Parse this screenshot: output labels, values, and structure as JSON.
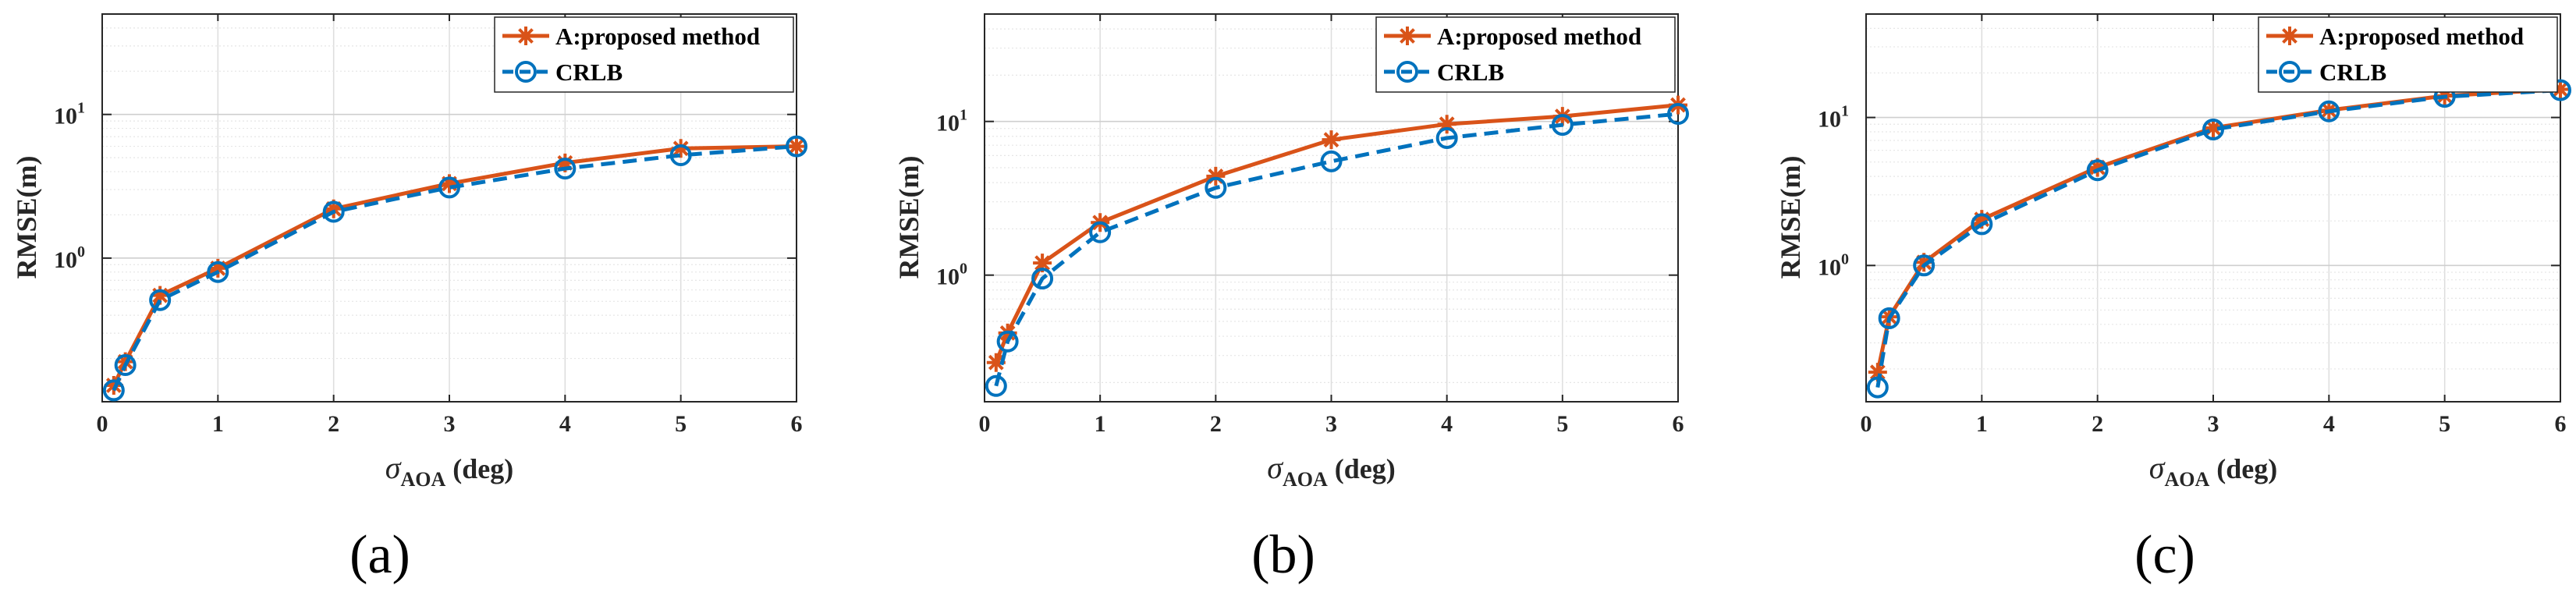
{
  "colors": {
    "proposed": "#D95319",
    "crlb": "#0072BD",
    "grid": "#DDDDDD",
    "axis": "#262626"
  },
  "chart_data": [
    {
      "type": "line",
      "panel_label": "(a)",
      "xlabel": "σ",
      "xlabel_sub": "AOA",
      "xlabel_unit": " (deg)",
      "ylabel": "RMSE(m)",
      "xlim": [
        0,
        6
      ],
      "ylim": [
        0.1,
        50
      ],
      "yscale": "log",
      "x_ticks": [
        0,
        1,
        2,
        3,
        4,
        5,
        6
      ],
      "y_ticks": [
        {
          "base": "10",
          "exp": "0",
          "value": 1
        },
        {
          "base": "10",
          "exp": "1",
          "value": 10
        }
      ],
      "grid": true,
      "legend_position": "top-right",
      "series": [
        {
          "name": "A:proposed method",
          "style": "solid",
          "marker": "star",
          "x": [
            0.1,
            0.2,
            0.5,
            1,
            2,
            3,
            4,
            5,
            6
          ],
          "values": [
            0.13,
            0.19,
            0.55,
            0.85,
            2.2,
            3.3,
            4.6,
            5.8,
            6.0
          ]
        },
        {
          "name": "CRLB",
          "style": "dashed",
          "marker": "circle",
          "x": [
            0.1,
            0.2,
            0.5,
            1,
            2,
            3,
            4,
            5,
            6
          ],
          "values": [
            0.12,
            0.18,
            0.51,
            0.8,
            2.1,
            3.1,
            4.2,
            5.2,
            6.0
          ]
        }
      ]
    },
    {
      "type": "line",
      "panel_label": "(b)",
      "xlabel": "σ",
      "xlabel_sub": "AOA",
      "xlabel_unit": " (deg)",
      "ylabel": "RMSE(m)",
      "xlim": [
        0,
        6
      ],
      "ylim": [
        0.15,
        50
      ],
      "yscale": "log",
      "x_ticks": [
        0,
        1,
        2,
        3,
        4,
        5,
        6
      ],
      "y_ticks": [
        {
          "base": "10",
          "exp": "0",
          "value": 1
        },
        {
          "base": "10",
          "exp": "1",
          "value": 10
        }
      ],
      "grid": true,
      "legend_position": "top-right",
      "series": [
        {
          "name": "A:proposed method",
          "style": "solid",
          "marker": "star",
          "x": [
            0.1,
            0.2,
            0.5,
            1,
            2,
            3,
            4,
            5,
            6
          ],
          "values": [
            0.27,
            0.42,
            1.2,
            2.2,
            4.4,
            7.6,
            9.6,
            10.8,
            12.8
          ]
        },
        {
          "name": "CRLB",
          "style": "dashed",
          "marker": "circle",
          "x": [
            0.1,
            0.2,
            0.5,
            1,
            2,
            3,
            4,
            5,
            6
          ],
          "values": [
            0.19,
            0.37,
            0.95,
            1.9,
            3.7,
            5.5,
            7.8,
            9.5,
            11.2
          ]
        }
      ]
    },
    {
      "type": "line",
      "panel_label": "(c)",
      "xlabel": "σ",
      "xlabel_sub": "AOA",
      "xlabel_unit": " (deg)",
      "ylabel": "RMSE(m)",
      "xlim": [
        0,
        6
      ],
      "ylim": [
        0.12,
        50
      ],
      "yscale": "log",
      "x_ticks": [
        0,
        1,
        2,
        3,
        4,
        5,
        6
      ],
      "y_ticks": [
        {
          "base": "10",
          "exp": "0",
          "value": 1
        },
        {
          "base": "10",
          "exp": "1",
          "value": 10
        }
      ],
      "grid": true,
      "legend_position": "top-right",
      "series": [
        {
          "name": "A:proposed method",
          "style": "solid",
          "marker": "star",
          "x": [
            0.1,
            0.2,
            0.5,
            1,
            2,
            3,
            4,
            5,
            6
          ],
          "values": [
            0.19,
            0.45,
            1.05,
            2.05,
            4.6,
            8.5,
            11.2,
            14.0,
            15.5
          ]
        },
        {
          "name": "CRLB",
          "style": "dashed",
          "marker": "circle",
          "x": [
            0.1,
            0.2,
            0.5,
            1,
            2,
            3,
            4,
            5,
            6
          ],
          "values": [
            0.15,
            0.44,
            1.0,
            1.9,
            4.4,
            8.3,
            11.0,
            13.8,
            15.3
          ]
        }
      ]
    }
  ]
}
